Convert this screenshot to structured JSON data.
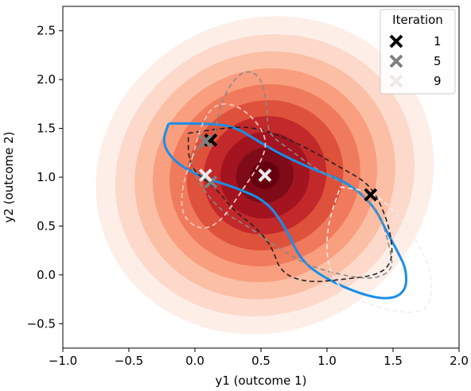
{
  "chart_data": {
    "type": "scatter",
    "xlabel": "y1 (outcome 1)",
    "ylabel": "y2 (outcome 2)",
    "xlim": [
      -1.0,
      2.0
    ],
    "ylim": [
      -0.75,
      2.75
    ],
    "x_ticks": [
      -1.0,
      -0.5,
      0.0,
      0.5,
      1.0,
      1.5,
      2.0
    ],
    "y_ticks": [
      -0.5,
      0.0,
      0.5,
      1.0,
      1.5,
      2.0,
      2.5
    ],
    "x_tick_labels": [
      "−1.0",
      "−0.5",
      "0.0",
      "0.5",
      "1.0",
      "1.5",
      "2.0"
    ],
    "y_tick_labels": [
      "−0.5",
      "0.0",
      "0.5",
      "1.0",
      "1.5",
      "2.0",
      "2.5"
    ],
    "density": {
      "center": [
        0.53,
        1.02
      ],
      "colormap": "Reds",
      "levels": [
        {
          "rx": 1.3,
          "ry": 1.6,
          "color": "#fdeee8"
        },
        {
          "rx": 1.15,
          "ry": 1.42,
          "color": "#fcd9cb"
        },
        {
          "rx": 1.0,
          "ry": 1.25,
          "color": "#fbbfa5"
        },
        {
          "rx": 0.86,
          "ry": 1.08,
          "color": "#f99e7f"
        },
        {
          "rx": 0.73,
          "ry": 0.92,
          "color": "#f07a5c"
        },
        {
          "rx": 0.6,
          "ry": 0.76,
          "color": "#de513b"
        },
        {
          "rx": 0.47,
          "ry": 0.6,
          "color": "#c3282a"
        },
        {
          "rx": 0.34,
          "ry": 0.44,
          "color": "#a31420"
        },
        {
          "rx": 0.22,
          "ry": 0.28,
          "color": "#7f0a18"
        },
        {
          "rx": 0.11,
          "ry": 0.14,
          "color": "#66000f"
        }
      ]
    },
    "series": [
      {
        "name": "1",
        "color": "#000000",
        "points": [
          [
            0.12,
            1.38
          ],
          [
            1.33,
            0.82
          ]
        ]
      },
      {
        "name": "5",
        "color": "#808080",
        "points": [
          [
            0.08,
            1.37
          ],
          [
            0.12,
            0.95
          ]
        ]
      },
      {
        "name": "9",
        "color": "#ebebeb",
        "points": [
          [
            0.08,
            1.02
          ],
          [
            0.53,
            1.02
          ]
        ]
      }
    ],
    "contours": [
      {
        "color": "#1a8ee8",
        "style": "solid",
        "width": 3,
        "points": [
          [
            -0.2,
            1.55
          ],
          [
            0.1,
            1.55
          ],
          [
            0.3,
            1.52
          ],
          [
            0.5,
            1.35
          ],
          [
            0.7,
            1.2
          ],
          [
            0.95,
            1.05
          ],
          [
            1.15,
            0.95
          ],
          [
            1.35,
            0.72
          ],
          [
            1.45,
            0.45
          ],
          [
            1.55,
            0.2
          ],
          [
            1.6,
            0.05
          ],
          [
            1.6,
            -0.15
          ],
          [
            1.5,
            -0.25
          ],
          [
            1.3,
            -0.22
          ],
          [
            1.0,
            -0.05
          ],
          [
            0.8,
            0.15
          ],
          [
            0.7,
            0.45
          ],
          [
            0.55,
            0.75
          ],
          [
            0.3,
            0.9
          ],
          [
            0.05,
            1.0
          ],
          [
            -0.15,
            1.15
          ],
          [
            -0.25,
            1.35
          ],
          [
            -0.2,
            1.55
          ]
        ]
      },
      {
        "color": "#222222",
        "style": "dashed",
        "width": 1.6,
        "points": [
          [
            -0.05,
            1.45
          ],
          [
            0.2,
            1.5
          ],
          [
            0.4,
            1.52
          ],
          [
            0.6,
            1.45
          ],
          [
            0.85,
            1.3
          ],
          [
            1.1,
            1.1
          ],
          [
            1.3,
            0.95
          ],
          [
            1.4,
            0.75
          ],
          [
            1.48,
            0.45
          ],
          [
            1.5,
            0.15
          ],
          [
            1.4,
            0.0
          ],
          [
            1.1,
            -0.05
          ],
          [
            0.85,
            -0.08
          ],
          [
            0.65,
            0.02
          ],
          [
            0.58,
            0.3
          ],
          [
            0.45,
            0.5
          ],
          [
            0.3,
            0.65
          ],
          [
            0.15,
            0.9
          ],
          [
            0.0,
            1.05
          ],
          [
            -0.05,
            1.2
          ],
          [
            -0.05,
            1.45
          ]
        ]
      },
      {
        "color": "#8a8a8a",
        "style": "dashed",
        "width": 1.6,
        "points": [
          [
            0.15,
            1.45
          ],
          [
            0.2,
            1.8
          ],
          [
            0.35,
            2.1
          ],
          [
            0.5,
            2.05
          ],
          [
            0.55,
            1.7
          ],
          [
            0.55,
            1.45
          ],
          [
            0.7,
            1.3
          ],
          [
            0.9,
            1.1
          ],
          [
            1.1,
            0.95
          ],
          [
            1.3,
            0.8
          ],
          [
            1.42,
            0.55
          ],
          [
            1.48,
            0.25
          ],
          [
            1.5,
            0.05
          ],
          [
            1.35,
            -0.05
          ],
          [
            1.1,
            0.0
          ],
          [
            0.85,
            0.1
          ],
          [
            0.6,
            0.3
          ],
          [
            0.4,
            0.5
          ],
          [
            0.2,
            0.65
          ],
          [
            0.05,
            0.9
          ],
          [
            -0.05,
            1.15
          ],
          [
            0.05,
            1.35
          ],
          [
            0.15,
            1.45
          ]
        ]
      },
      {
        "color": "#f0c2b8",
        "style": "dashed",
        "width": 1.8,
        "points": [
          [
            -0.02,
            1.2
          ],
          [
            0.05,
            1.55
          ],
          [
            0.15,
            1.75
          ],
          [
            0.3,
            1.75
          ],
          [
            0.45,
            1.6
          ],
          [
            0.55,
            1.38
          ],
          [
            0.5,
            1.15
          ],
          [
            0.35,
            0.85
          ],
          [
            0.2,
            0.55
          ],
          [
            0.05,
            0.45
          ],
          [
            -0.1,
            0.6
          ],
          [
            -0.1,
            0.9
          ],
          [
            -0.02,
            1.2
          ]
        ]
      },
      {
        "color": "#eeeeee",
        "style": "dashed",
        "width": 1.6,
        "points": [
          [
            1.1,
            0.9
          ],
          [
            1.35,
            0.85
          ],
          [
            1.55,
            0.6
          ],
          [
            1.7,
            0.3
          ],
          [
            1.8,
            0.0
          ],
          [
            1.78,
            -0.35
          ],
          [
            1.6,
            -0.4
          ],
          [
            1.3,
            -0.3
          ],
          [
            1.1,
            -0.15
          ],
          [
            1.0,
            0.1
          ],
          [
            1.0,
            0.5
          ],
          [
            1.1,
            0.9
          ]
        ]
      }
    ],
    "legend": {
      "title": "Iteration",
      "placement": "upper-right",
      "entries": [
        "1",
        "5",
        "9"
      ]
    },
    "grid": false
  }
}
